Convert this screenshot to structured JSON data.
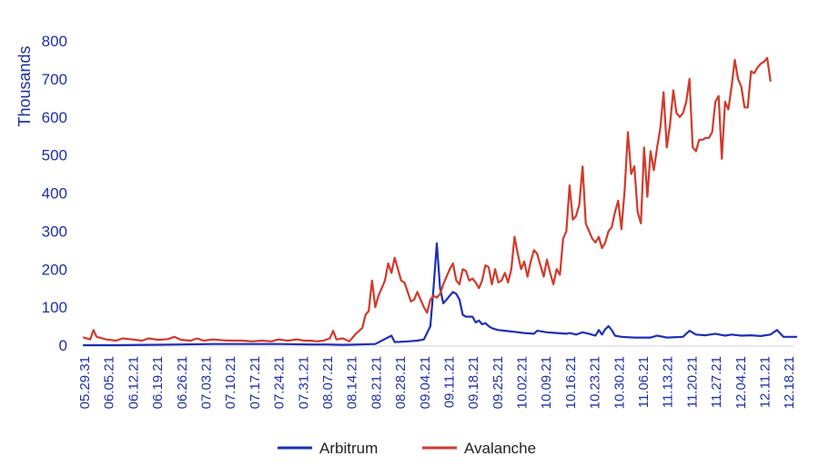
{
  "chart_data": {
    "type": "line",
    "ylabel": "Thousands",
    "ylim": [
      0,
      800
    ],
    "yticks": [
      "0",
      "100",
      "200",
      "300",
      "400",
      "500",
      "600",
      "700",
      "800"
    ],
    "legend_position": "bottom-center",
    "x_tick_labels": [
      "05.29.31",
      "06.05.21",
      "06.12.21",
      "06.19.21",
      "06.26.21",
      "07.03.21",
      "07.10.21",
      "07.17.21",
      "07.24.21",
      "07.31.21",
      "08.07.21",
      "08.14.21",
      "08.21.21",
      "08.28.21",
      "09.04.21",
      "09.11.21",
      "09.18.21",
      "09.25.21",
      "10.02.21",
      "10.09.21",
      "10.16.21",
      "10.23.21",
      "10.30.21",
      "11.06.21",
      "11.13.21",
      "11.20.21",
      "11.27.21",
      "12.04.21",
      "12.11.21",
      "12.18.21"
    ],
    "series": [
      {
        "name": "Arbitrum",
        "color": "#1f2fb5",
        "points": [
          [
            0,
            0
          ],
          [
            10,
            0
          ],
          [
            20,
            1
          ],
          [
            30,
            2
          ],
          [
            40,
            3
          ],
          [
            50,
            3
          ],
          [
            60,
            3
          ],
          [
            70,
            2
          ],
          [
            75,
            2
          ],
          [
            80,
            1
          ],
          [
            85,
            2
          ],
          [
            90,
            3
          ],
          [
            95,
            25
          ],
          [
            96,
            8
          ],
          [
            100,
            10
          ],
          [
            103,
            12
          ],
          [
            105,
            15
          ],
          [
            107,
            50
          ],
          [
            108,
            150
          ],
          [
            109,
            268
          ],
          [
            110,
            150
          ],
          [
            111,
            110
          ],
          [
            112,
            120
          ],
          [
            113,
            130
          ],
          [
            114,
            140
          ],
          [
            115,
            135
          ],
          [
            116,
            120
          ],
          [
            117,
            80
          ],
          [
            118,
            75
          ],
          [
            120,
            75
          ],
          [
            121,
            60
          ],
          [
            122,
            65
          ],
          [
            123,
            55
          ],
          [
            124,
            58
          ],
          [
            125,
            50
          ],
          [
            126,
            45
          ],
          [
            127,
            42
          ],
          [
            128,
            40
          ],
          [
            130,
            38
          ],
          [
            133,
            35
          ],
          [
            136,
            32
          ],
          [
            139,
            30
          ],
          [
            140,
            38
          ],
          [
            143,
            34
          ],
          [
            146,
            32
          ],
          [
            149,
            30
          ],
          [
            150,
            32
          ],
          [
            152,
            28
          ],
          [
            154,
            34
          ],
          [
            156,
            30
          ],
          [
            158,
            25
          ],
          [
            159,
            40
          ],
          [
            160,
            28
          ],
          [
            161,
            42
          ],
          [
            162,
            50
          ],
          [
            163,
            40
          ],
          [
            164,
            25
          ],
          [
            166,
            22
          ],
          [
            170,
            20
          ],
          [
            175,
            20
          ],
          [
            177,
            25
          ],
          [
            180,
            20
          ],
          [
            185,
            22
          ],
          [
            187,
            38
          ],
          [
            189,
            28
          ],
          [
            192,
            26
          ],
          [
            195,
            30
          ],
          [
            198,
            25
          ],
          [
            200,
            28
          ],
          [
            203,
            25
          ],
          [
            206,
            26
          ],
          [
            209,
            24
          ],
          [
            212,
            28
          ],
          [
            214,
            40
          ],
          [
            216,
            22
          ],
          [
            220,
            22
          ]
        ]
      },
      {
        "name": "Avalanche",
        "color": "#d23a2b",
        "points": [
          [
            0,
            20
          ],
          [
            2,
            15
          ],
          [
            3,
            40
          ],
          [
            4,
            22
          ],
          [
            7,
            15
          ],
          [
            10,
            12
          ],
          [
            12,
            18
          ],
          [
            15,
            15
          ],
          [
            18,
            12
          ],
          [
            20,
            18
          ],
          [
            23,
            14
          ],
          [
            26,
            16
          ],
          [
            28,
            22
          ],
          [
            30,
            14
          ],
          [
            33,
            12
          ],
          [
            35,
            18
          ],
          [
            37,
            12
          ],
          [
            40,
            15
          ],
          [
            43,
            13
          ],
          [
            46,
            12
          ],
          [
            49,
            12
          ],
          [
            52,
            10
          ],
          [
            55,
            12
          ],
          [
            58,
            10
          ],
          [
            60,
            15
          ],
          [
            63,
            12
          ],
          [
            66,
            15
          ],
          [
            68,
            12
          ],
          [
            70,
            12
          ],
          [
            72,
            10
          ],
          [
            74,
            12
          ],
          [
            76,
            18
          ],
          [
            77,
            38
          ],
          [
            78,
            15
          ],
          [
            80,
            18
          ],
          [
            82,
            10
          ],
          [
            84,
            30
          ],
          [
            86,
            45
          ],
          [
            87,
            80
          ],
          [
            88,
            90
          ],
          [
            89,
            170
          ],
          [
            90,
            100
          ],
          [
            91,
            130
          ],
          [
            92,
            150
          ],
          [
            93,
            170
          ],
          [
            94,
            215
          ],
          [
            95,
            190
          ],
          [
            96,
            230
          ],
          [
            97,
            200
          ],
          [
            98,
            170
          ],
          [
            99,
            165
          ],
          [
            100,
            140
          ],
          [
            101,
            115
          ],
          [
            102,
            120
          ],
          [
            103,
            140
          ],
          [
            104,
            120
          ],
          [
            105,
            100
          ],
          [
            106,
            85
          ],
          [
            107,
            120
          ],
          [
            108,
            130
          ],
          [
            109,
            125
          ],
          [
            110,
            135
          ],
          [
            111,
            160
          ],
          [
            112,
            180
          ],
          [
            113,
            200
          ],
          [
            114,
            215
          ],
          [
            115,
            170
          ],
          [
            116,
            160
          ],
          [
            117,
            200
          ],
          [
            118,
            195
          ],
          [
            119,
            170
          ],
          [
            120,
            175
          ],
          [
            121,
            165
          ],
          [
            122,
            150
          ],
          [
            123,
            170
          ],
          [
            124,
            210
          ],
          [
            125,
            205
          ],
          [
            126,
            160
          ],
          [
            127,
            200
          ],
          [
            128,
            165
          ],
          [
            129,
            170
          ],
          [
            130,
            190
          ],
          [
            131,
            165
          ],
          [
            132,
            200
          ],
          [
            133,
            285
          ],
          [
            134,
            240
          ],
          [
            135,
            200
          ],
          [
            136,
            220
          ],
          [
            137,
            180
          ],
          [
            138,
            220
          ],
          [
            139,
            250
          ],
          [
            140,
            240
          ],
          [
            141,
            210
          ],
          [
            142,
            180
          ],
          [
            143,
            225
          ],
          [
            144,
            190
          ],
          [
            145,
            160
          ],
          [
            146,
            200
          ],
          [
            147,
            185
          ],
          [
            148,
            280
          ],
          [
            149,
            300
          ],
          [
            150,
            420
          ],
          [
            151,
            330
          ],
          [
            152,
            340
          ],
          [
            153,
            370
          ],
          [
            154,
            470
          ],
          [
            155,
            320
          ],
          [
            156,
            300
          ],
          [
            157,
            280
          ],
          [
            158,
            270
          ],
          [
            159,
            285
          ],
          [
            160,
            255
          ],
          [
            161,
            270
          ],
          [
            162,
            300
          ],
          [
            163,
            310
          ],
          [
            164,
            350
          ],
          [
            165,
            380
          ],
          [
            166,
            305
          ],
          [
            167,
            410
          ],
          [
            168,
            560
          ],
          [
            169,
            450
          ],
          [
            170,
            470
          ],
          [
            171,
            350
          ],
          [
            172,
            320
          ],
          [
            173,
            520
          ],
          [
            174,
            390
          ],
          [
            175,
            510
          ],
          [
            176,
            460
          ],
          [
            177,
            520
          ],
          [
            178,
            570
          ],
          [
            179,
            665
          ],
          [
            180,
            520
          ],
          [
            181,
            580
          ],
          [
            182,
            670
          ],
          [
            183,
            610
          ],
          [
            184,
            600
          ],
          [
            185,
            610
          ],
          [
            186,
            640
          ],
          [
            187,
            700
          ],
          [
            188,
            520
          ],
          [
            189,
            510
          ],
          [
            190,
            540
          ],
          [
            191,
            540
          ],
          [
            192,
            545
          ],
          [
            193,
            545
          ],
          [
            194,
            560
          ],
          [
            195,
            640
          ],
          [
            196,
            655
          ],
          [
            197,
            490
          ],
          [
            198,
            640
          ],
          [
            199,
            620
          ],
          [
            200,
            680
          ],
          [
            201,
            750
          ],
          [
            202,
            700
          ],
          [
            203,
            680
          ],
          [
            204,
            625
          ],
          [
            205,
            625
          ],
          [
            206,
            720
          ],
          [
            207,
            715
          ],
          [
            208,
            730
          ],
          [
            209,
            740
          ],
          [
            210,
            745
          ],
          [
            211,
            755
          ],
          [
            212,
            695
          ]
        ]
      }
    ]
  }
}
